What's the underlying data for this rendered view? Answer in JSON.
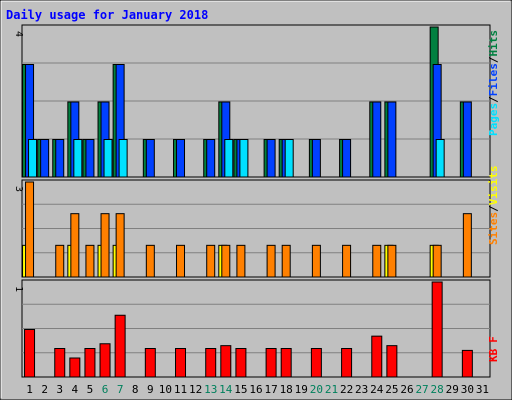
{
  "chart_data": {
    "title": "Daily usage for January 2018",
    "type": "bar",
    "categories": [
      "1",
      "2",
      "3",
      "4",
      "5",
      "6",
      "7",
      "8",
      "9",
      "10",
      "11",
      "12",
      "13",
      "14",
      "15",
      "16",
      "17",
      "18",
      "19",
      "20",
      "21",
      "22",
      "23",
      "24",
      "25",
      "26",
      "27",
      "28",
      "29",
      "30",
      "31"
    ],
    "weekend_days": [
      "6",
      "7",
      "13",
      "14",
      "20",
      "21",
      "27",
      "28"
    ],
    "panels": [
      {
        "id": "hits-files-pages",
        "ymax_label": "4",
        "ymax": 4,
        "legend": [
          "Pages",
          "/",
          "Files",
          "/",
          "Hits"
        ],
        "series": [
          {
            "name": "Hits",
            "color": "#008040",
            "values": [
              3,
              1,
              1,
              2,
              1,
              2,
              3,
              0,
              1,
              0,
              1,
              0,
              1,
              2,
              1,
              0,
              1,
              1,
              0,
              1,
              0,
              1,
              0,
              2,
              2,
              0,
              0,
              4,
              0,
              2,
              0
            ]
          },
          {
            "name": "Files",
            "color": "#0040ff",
            "values": [
              3,
              1,
              1,
              2,
              1,
              2,
              3,
              0,
              1,
              0,
              1,
              0,
              1,
              2,
              1,
              0,
              1,
              1,
              0,
              1,
              0,
              1,
              0,
              2,
              2,
              0,
              0,
              3,
              0,
              2,
              0
            ]
          },
          {
            "name": "Pages",
            "color": "#00e0ff",
            "values": [
              1,
              0,
              0,
              1,
              0,
              1,
              1,
              0,
              0,
              0,
              0,
              0,
              0,
              1,
              1,
              0,
              0,
              1,
              0,
              0,
              0,
              0,
              0,
              0,
              0,
              0,
              0,
              1,
              0,
              0,
              0
            ]
          }
        ]
      },
      {
        "id": "visits-sites",
        "ymax_label": "3",
        "ymax": 3,
        "legend": [
          "Sites",
          "/",
          "Visits"
        ],
        "series": [
          {
            "name": "Visits",
            "color": "#ffff00",
            "values": [
              1,
              0,
              0,
              1,
              0,
              1,
              1,
              0,
              0,
              0,
              0,
              0,
              0,
              1,
              0,
              0,
              0,
              0,
              0,
              0,
              0,
              0,
              0,
              0,
              1,
              0,
              0,
              1,
              0,
              0,
              0
            ]
          },
          {
            "name": "Sites",
            "color": "#ff8000",
            "values": [
              3,
              0,
              1,
              2,
              1,
              2,
              2,
              0,
              1,
              0,
              1,
              0,
              1,
              1,
              1,
              0,
              1,
              1,
              0,
              1,
              0,
              1,
              0,
              1,
              1,
              0,
              0,
              1,
              0,
              2,
              0
            ]
          }
        ]
      },
      {
        "id": "kbytes",
        "ymax_label": "1",
        "ymax": 1,
        "legend": [
          "KB",
          "F"
        ],
        "series": [
          {
            "name": "KB F",
            "color": "#ff0000",
            "values": [
              0.5,
              0,
              0.3,
              0.2,
              0.3,
              0.35,
              0.65,
              0,
              0.3,
              0,
              0.3,
              0,
              0.3,
              0.33,
              0.3,
              0,
              0.3,
              0.3,
              0,
              0.3,
              0,
              0.3,
              0,
              0.43,
              0.33,
              0,
              0,
              1.0,
              0,
              0.28,
              0
            ]
          }
        ]
      }
    ]
  },
  "colors": {
    "frame_bg": "#c0c0c0",
    "plot_bg": "#c0c0c0",
    "grid": "#808080",
    "title": "#0000ff",
    "weekday_label": "#000000",
    "weekend_label": "#00805c",
    "legend_sep": "#000000"
  }
}
